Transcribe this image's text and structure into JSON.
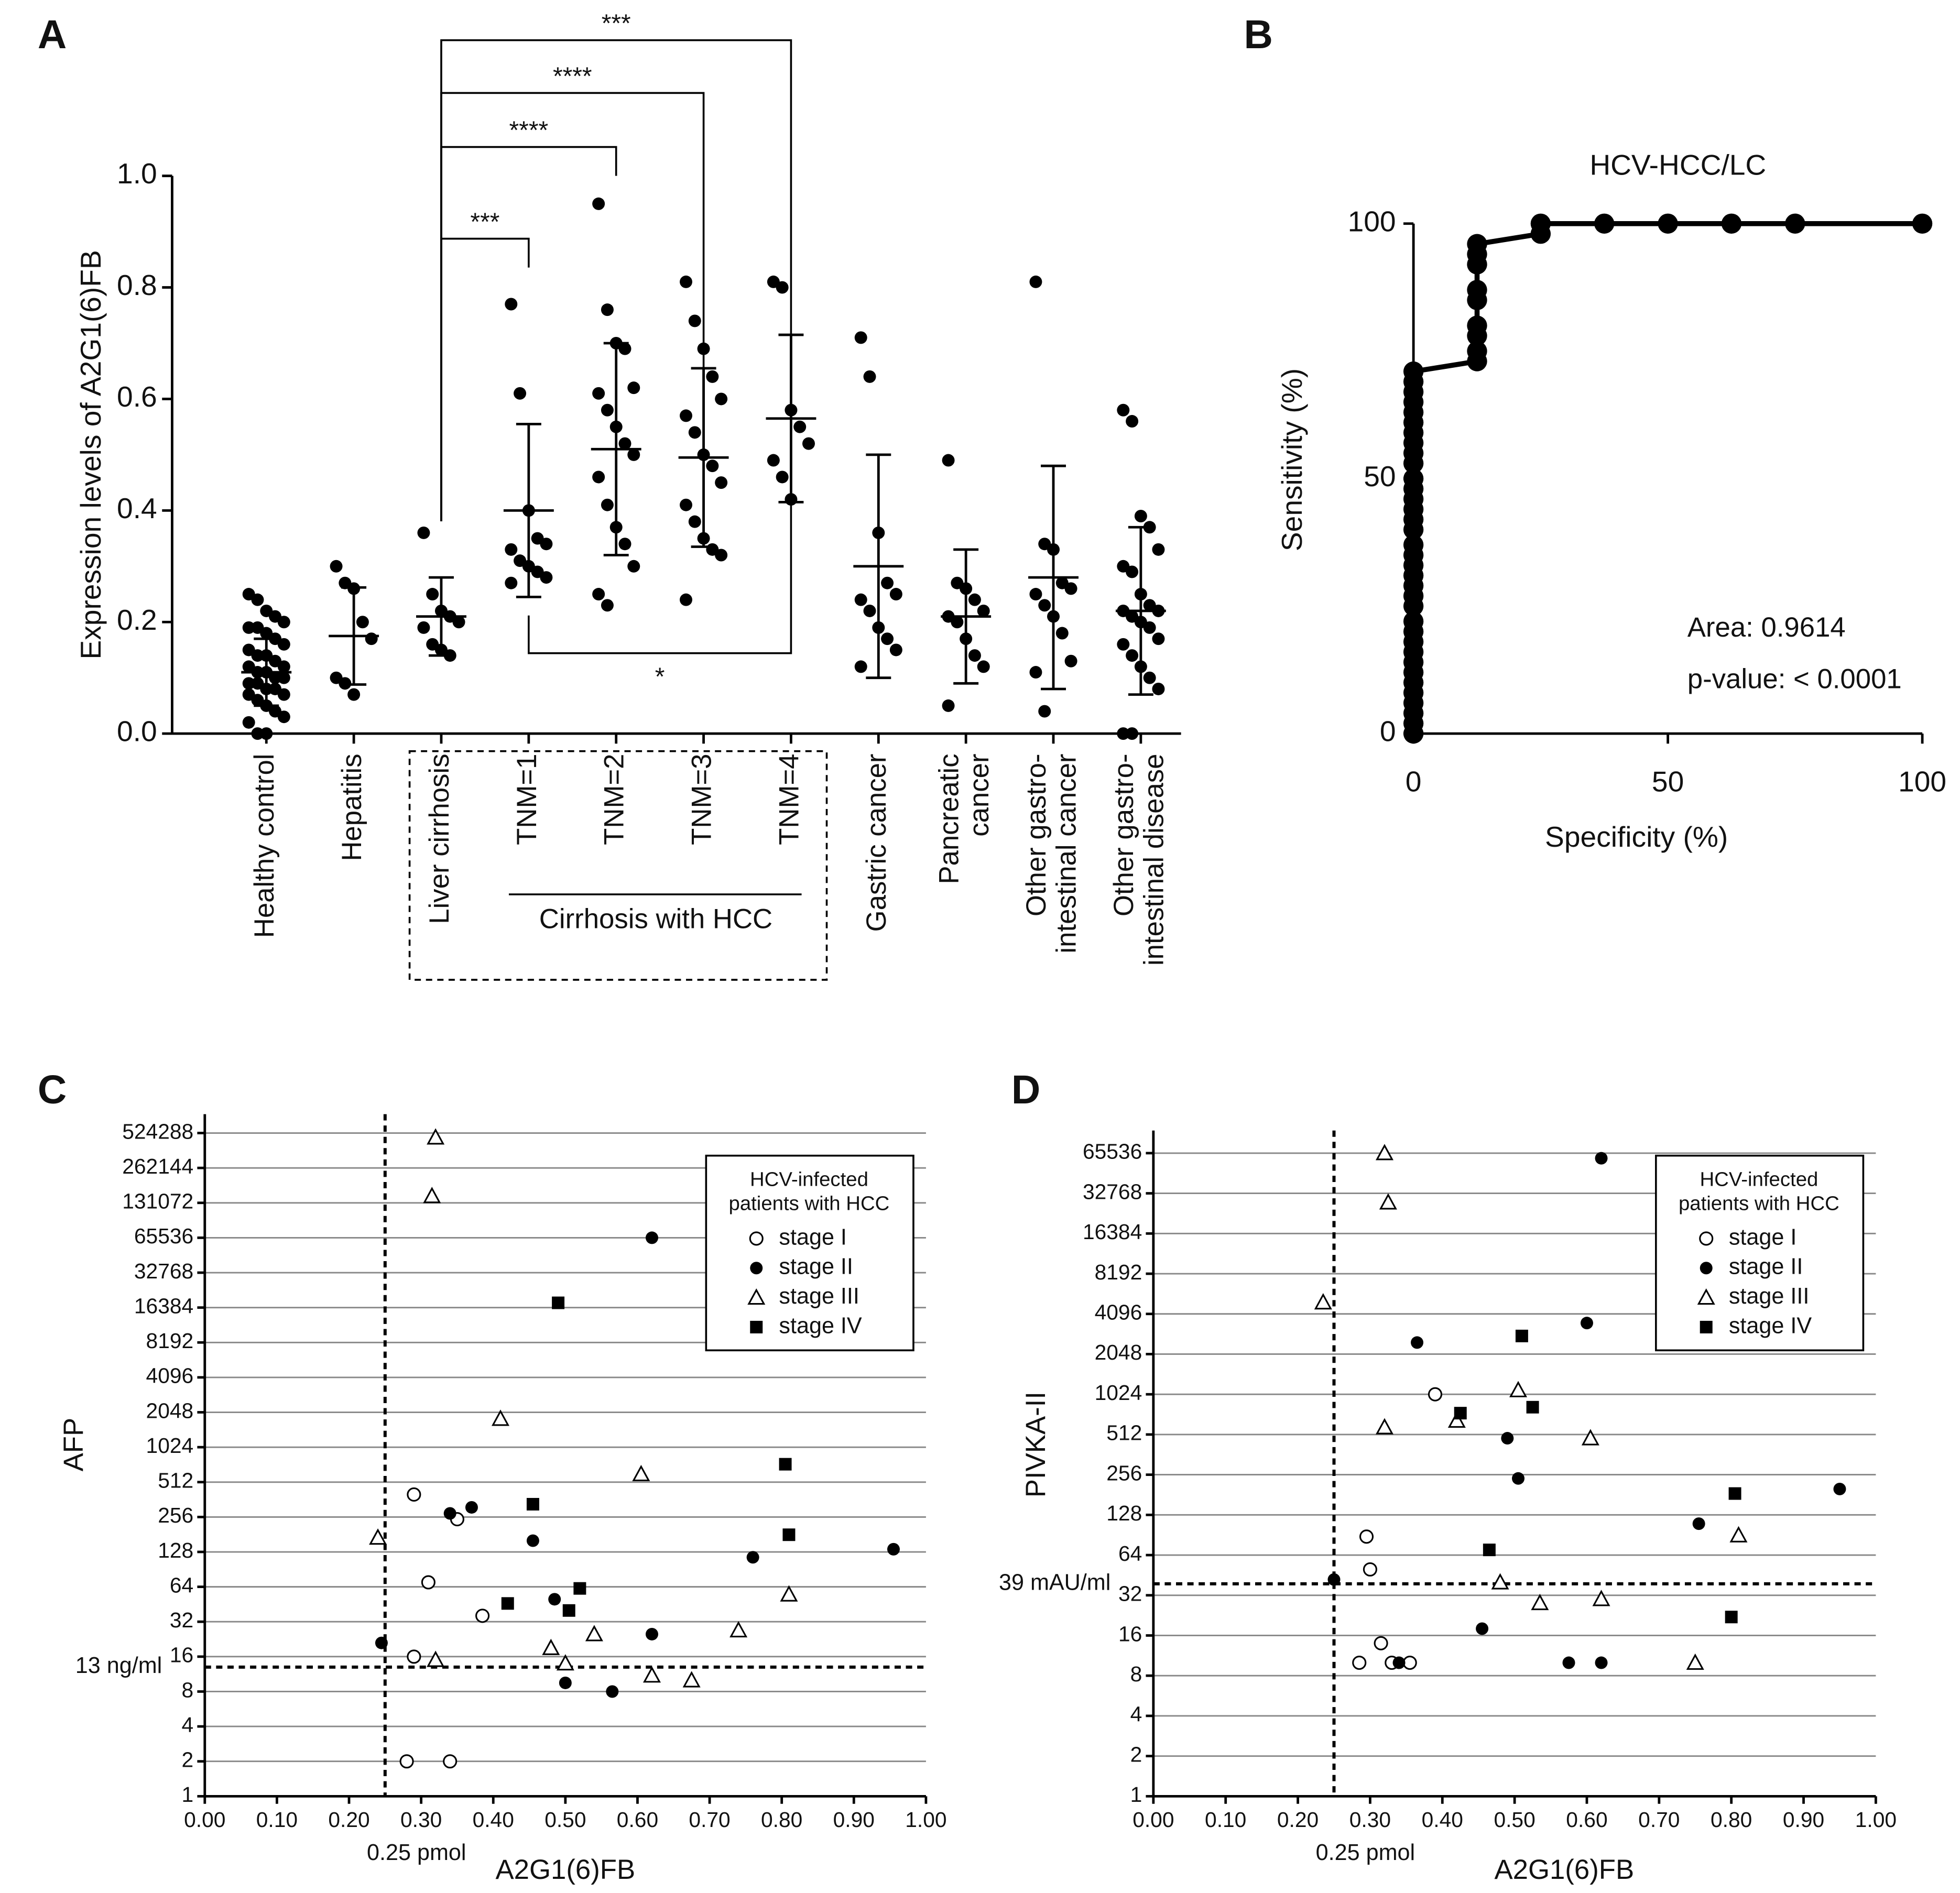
{
  "chart_data": [
    {
      "type": "strip",
      "panel": "A",
      "ylabel": "Expression levels of A2G1(6)FB",
      "categories": [
        [
          "Healthy control"
        ],
        [
          "Hepatitis"
        ],
        [
          "Liver cirrhosis"
        ],
        [
          "TNM=1"
        ],
        [
          "TNM=2"
        ],
        [
          "TNM=3"
        ],
        [
          "TNM=4"
        ],
        [
          "Gastric cancer"
        ],
        [
          "Pancreatic",
          "cancer"
        ],
        [
          "Other gastro-",
          "intestinal cancer"
        ],
        [
          "Other gastro-",
          "intestinal disease"
        ]
      ],
      "group_label": "Cirrhosis with HCC",
      "values": [
        [
          0.25,
          0.24,
          0.22,
          0.21,
          0.2,
          0.19,
          0.19,
          0.18,
          0.17,
          0.16,
          0.15,
          0.14,
          0.14,
          0.13,
          0.12,
          0.12,
          0.11,
          0.11,
          0.1,
          0.1,
          0.09,
          0.09,
          0.08,
          0.08,
          0.07,
          0.07,
          0.06,
          0.05,
          0.04,
          0.03,
          0.02,
          0,
          0
        ],
        [
          0.3,
          0.27,
          0.26,
          0.2,
          0.17,
          0.1,
          0.09,
          0.07
        ],
        [
          0.36,
          0.25,
          0.22,
          0.21,
          0.2,
          0.19,
          0.16,
          0.15,
          0.14
        ],
        [
          0.77,
          0.61,
          0.4,
          0.35,
          0.34,
          0.33,
          0.31,
          0.3,
          0.29,
          0.28,
          0.27
        ],
        [
          0.95,
          0.76,
          0.7,
          0.69,
          0.62,
          0.61,
          0.58,
          0.55,
          0.52,
          0.5,
          0.46,
          0.41,
          0.37,
          0.34,
          0.3,
          0.25,
          0.23
        ],
        [
          0.81,
          0.74,
          0.69,
          0.64,
          0.6,
          0.57,
          0.54,
          0.5,
          0.48,
          0.45,
          0.41,
          0.38,
          0.35,
          0.33,
          0.32,
          0.24
        ],
        [
          0.81,
          0.8,
          0.58,
          0.55,
          0.52,
          0.49,
          0.46,
          0.42
        ],
        [
          0.71,
          0.64,
          0.36,
          0.27,
          0.25,
          0.24,
          0.22,
          0.19,
          0.17,
          0.15,
          0.12
        ],
        [
          0.49,
          0.27,
          0.26,
          0.24,
          0.22,
          0.21,
          0.2,
          0.17,
          0.14,
          0.12,
          0.05
        ],
        [
          0.81,
          0.34,
          0.33,
          0.27,
          0.26,
          0.25,
          0.23,
          0.21,
          0.18,
          0.13,
          0.11,
          0.04
        ],
        [
          0.58,
          0.56,
          0.39,
          0.37,
          0.33,
          0.3,
          0.29,
          0.25,
          0.23,
          0.22,
          0.22,
          0.21,
          0.2,
          0.19,
          0.17,
          0.16,
          0.14,
          0.12,
          0.1,
          0.08,
          0,
          0
        ]
      ],
      "mean": [
        0.11,
        0.175,
        0.21,
        0.4,
        0.51,
        0.495,
        0.565,
        0.3,
        0.21,
        0.28,
        0.22
      ],
      "sd": [
        0.06,
        0.087,
        0.07,
        0.155,
        0.19,
        0.16,
        0.15,
        0.2,
        0.12,
        0.2,
        0.15
      ],
      "annotations": [
        "***",
        "****",
        "****",
        "***",
        "*"
      ],
      "color": "#000000",
      "ylim": [
        0,
        1
      ],
      "yticks": [
        {
          "value": 0,
          "label": "0.0"
        },
        0.2,
        0.4,
        0.6,
        0.8,
        {
          "value": 1,
          "label": "1.0"
        }
      ]
    },
    {
      "type": "line",
      "panel": "B",
      "title": "HCV-HCC/LC",
      "xlabel": "Specificity (%)",
      "ylabel": "Sensitivity (%)",
      "annotations": [
        "Area: 0.9614",
        "p-value: < 0.0001"
      ],
      "x": [
        0,
        0,
        0,
        0,
        0,
        0,
        0,
        0,
        0,
        0,
        0,
        0,
        0,
        0,
        0,
        0,
        0,
        0,
        0,
        0,
        0,
        0,
        0,
        0,
        0,
        0,
        0,
        0,
        0,
        0,
        0,
        0,
        0,
        0,
        0,
        12.5,
        12.5,
        12.5,
        12.5,
        12.5,
        12.5,
        12.5,
        12.5,
        12.5,
        25,
        25,
        37.5,
        50,
        62.5,
        75,
        100
      ],
      "y": [
        0,
        2,
        4,
        6,
        8,
        10,
        12,
        14,
        16,
        18,
        20,
        22,
        25,
        27,
        29,
        31,
        33,
        35,
        37,
        40,
        42,
        44,
        46,
        48,
        50,
        53,
        55,
        57,
        59,
        61,
        63,
        65,
        67,
        69,
        71,
        73,
        75,
        78,
        80,
        85,
        87,
        92,
        94,
        96,
        98,
        100,
        100,
        100,
        100,
        100,
        100
      ],
      "color": "#000000",
      "xlim": [
        0,
        100
      ],
      "xticks": [
        0,
        50,
        100
      ],
      "ylim": [
        0,
        100
      ],
      "yticks": [
        0,
        50,
        100
      ]
    },
    {
      "type": "scatter",
      "panel": "C",
      "xlabel": "A2G1(6)FB",
      "ylabel": "AFP",
      "ylog": 2,
      "grid": true,
      "legend": "upper right",
      "legend_title": [
        "HCV-infected",
        "patients with HCC"
      ],
      "reference_lines": [
        {
          "axis": "x",
          "value": 0.25,
          "label": "0.25 pmol"
        },
        {
          "axis": "y",
          "value": 13,
          "label": "13 ng/ml"
        }
      ],
      "series": [
        {
          "name": "stage I",
          "marker": "open-circle",
          "color": "#000000",
          "x": [
            0.29,
            0.35,
            0.31,
            0.385,
            0.29,
            0.28,
            0.34
          ],
          "y": [
            400,
            245,
            70,
            36,
            16,
            2,
            2
          ]
        },
        {
          "name": "stage II",
          "marker": "circle",
          "color": "#000000",
          "x": [
            0.62,
            0.37,
            0.34,
            0.455,
            0.955,
            0.76,
            0.485,
            0.245,
            0.62,
            0.5,
            0.565
          ],
          "y": [
            65536,
            310,
            275,
            160,
            135,
            115,
            50,
            21,
            25,
            9.5,
            8
          ]
        },
        {
          "name": "stage III",
          "marker": "open-triangle",
          "color": "#000000",
          "x": [
            0.32,
            0.315,
            0.41,
            0.605,
            0.24,
            0.81,
            0.54,
            0.74,
            0.48,
            0.32,
            0.5,
            0.62,
            0.675
          ],
          "y": [
            480000,
            150000,
            1800,
            600,
            170,
            55,
            25,
            27,
            19,
            15,
            14,
            11,
            10
          ]
        },
        {
          "name": "stage IV",
          "marker": "square",
          "color": "#000000",
          "x": [
            0.49,
            0.805,
            0.455,
            0.81,
            0.52,
            0.42,
            0.505
          ],
          "y": [
            18000,
            730,
            330,
            180,
            62,
            46,
            40
          ]
        }
      ],
      "xlim": [
        0,
        1
      ],
      "xticks": [
        {
          "value": 0,
          "label": "0.00"
        },
        {
          "value": 0.1,
          "label": "0.10"
        },
        {
          "value": 0.2,
          "label": "0.20"
        },
        {
          "value": 0.3,
          "label": "0.30"
        },
        {
          "value": 0.4,
          "label": "0.40"
        },
        {
          "value": 0.5,
          "label": "0.50"
        },
        {
          "value": 0.6,
          "label": "0.60"
        },
        {
          "value": 0.7,
          "label": "0.70"
        },
        {
          "value": 0.8,
          "label": "0.80"
        },
        {
          "value": 0.9,
          "label": "0.90"
        },
        {
          "value": 1,
          "label": "1.00"
        }
      ],
      "ylim": [
        1,
        524288
      ],
      "yticks": [
        1,
        2,
        4,
        8,
        16,
        32,
        64,
        128,
        256,
        512,
        1024,
        2048,
        4096,
        8192,
        16384,
        32768,
        65536,
        131072,
        262144,
        524288
      ]
    },
    {
      "type": "scatter",
      "panel": "D",
      "xlabel": "A2G1(6)FB",
      "ylabel": "PIVKA-II",
      "ylog": 2,
      "grid": true,
      "legend": "upper right",
      "legend_title": [
        "HCV-infected",
        "patients with HCC"
      ],
      "reference_lines": [
        {
          "axis": "x",
          "value": 0.25,
          "label": "0.25 pmol"
        },
        {
          "axis": "y",
          "value": 39,
          "label": "39 mAU/ml"
        }
      ],
      "series": [
        {
          "name": "stage I",
          "marker": "open-circle",
          "color": "#000000",
          "x": [
            0.39,
            0.295,
            0.3,
            0.315,
            0.285,
            0.33,
            0.355
          ],
          "y": [
            1024,
            88,
            50,
            14,
            10,
            10,
            10
          ]
        },
        {
          "name": "stage II",
          "marker": "circle",
          "color": "#000000",
          "x": [
            0.62,
            0.6,
            0.365,
            0.49,
            0.505,
            0.95,
            0.755,
            0.25,
            0.455,
            0.34,
            0.575,
            0.62
          ],
          "y": [
            60000,
            3500,
            2500,
            480,
            240,
            200,
            110,
            42,
            18,
            10,
            10,
            10
          ]
        },
        {
          "name": "stage III",
          "marker": "open-triangle",
          "color": "#000000",
          "x": [
            0.32,
            0.325,
            0.235,
            0.505,
            0.42,
            0.32,
            0.605,
            0.81,
            0.48,
            0.535,
            0.62,
            0.75
          ],
          "y": [
            65536,
            28000,
            5000,
            1100,
            650,
            580,
            480,
            90,
            40,
            28,
            30,
            10
          ]
        },
        {
          "name": "stage IV",
          "marker": "square",
          "color": "#000000",
          "x": [
            0.51,
            0.525,
            0.425,
            0.805,
            0.465,
            0.8
          ],
          "y": [
            2800,
            820,
            740,
            185,
            70,
            22
          ]
        }
      ],
      "xlim": [
        0,
        1
      ],
      "xticks": [
        {
          "value": 0,
          "label": "0.00"
        },
        {
          "value": 0.1,
          "label": "0.10"
        },
        {
          "value": 0.2,
          "label": "0.20"
        },
        {
          "value": 0.3,
          "label": "0.30"
        },
        {
          "value": 0.4,
          "label": "0.40"
        },
        {
          "value": 0.5,
          "label": "0.50"
        },
        {
          "value": 0.6,
          "label": "0.60"
        },
        {
          "value": 0.7,
          "label": "0.70"
        },
        {
          "value": 0.8,
          "label": "0.80"
        },
        {
          "value": 0.9,
          "label": "0.90"
        },
        {
          "value": 1,
          "label": "1.00"
        }
      ],
      "ylim": [
        1,
        65536
      ],
      "yticks": [
        1,
        2,
        4,
        8,
        16,
        32,
        64,
        128,
        256,
        512,
        1024,
        2048,
        4096,
        8192,
        16384,
        32768,
        65536
      ]
    }
  ]
}
